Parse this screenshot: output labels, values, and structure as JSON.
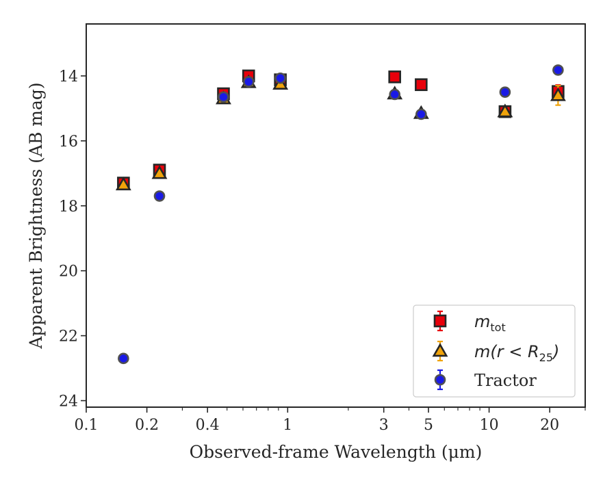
{
  "chart_data": {
    "type": "scatter",
    "xlabel": "Observed-frame Wavelength (μm)",
    "ylabel": "Apparent Brightness (AB mag)",
    "x_scale": "log",
    "xlim": [
      0.1,
      30
    ],
    "ylim": [
      24.2,
      12.4
    ],
    "y_inverted": true,
    "x_ticks": [
      {
        "value": 0.1,
        "label": "0.1"
      },
      {
        "value": 0.2,
        "label": "0.2"
      },
      {
        "value": 0.4,
        "label": "0.4"
      },
      {
        "value": 1,
        "label": "1"
      },
      {
        "value": 3,
        "label": "3"
      },
      {
        "value": 5,
        "label": "5"
      },
      {
        "value": 10,
        "label": "10"
      },
      {
        "value": 20,
        "label": "20"
      }
    ],
    "y_ticks": [
      {
        "value": 14,
        "label": "14"
      },
      {
        "value": 16,
        "label": "16"
      },
      {
        "value": 18,
        "label": "18"
      },
      {
        "value": 20,
        "label": "20"
      },
      {
        "value": 22,
        "label": "22"
      },
      {
        "value": 24,
        "label": "24"
      }
    ],
    "legend_position": "lower-right",
    "series": [
      {
        "name": "m_tot",
        "legend_main": "m",
        "legend_sub": "tot",
        "marker": "square",
        "color": "#e8000b",
        "edge_color": "#262626",
        "error_color": "#e8000b",
        "points": [
          {
            "x": 0.153,
            "y": 17.3,
            "err": 0.1
          },
          {
            "x": 0.231,
            "y": 16.9,
            "err": 0.1
          },
          {
            "x": 0.48,
            "y": 14.55,
            "err": 0.05
          },
          {
            "x": 0.64,
            "y": 14.0,
            "err": 0.05
          },
          {
            "x": 0.92,
            "y": 14.12,
            "err": 0.05
          },
          {
            "x": 3.4,
            "y": 14.03,
            "err": 0.05
          },
          {
            "x": 4.6,
            "y": 14.27,
            "err": 0.05
          },
          {
            "x": 12.0,
            "y": 15.1,
            "err": 0.05
          },
          {
            "x": 22.0,
            "y": 14.48,
            "err": 0.2
          }
        ]
      },
      {
        "name": "m(r<R25)",
        "legend_main": "m(r < R",
        "legend_sub": "25",
        "legend_close": ")",
        "marker": "triangle",
        "color": "#f0a30a",
        "edge_color": "#262626",
        "error_color": "#f0a30a",
        "points": [
          {
            "x": 0.153,
            "y": 17.35,
            "err": 0.1
          },
          {
            "x": 0.231,
            "y": 17.0,
            "err": 0.1
          },
          {
            "x": 0.48,
            "y": 14.7,
            "err": 0.05
          },
          {
            "x": 0.64,
            "y": 14.2,
            "err": 0.05
          },
          {
            "x": 0.92,
            "y": 14.25,
            "err": 0.05
          },
          {
            "x": 3.4,
            "y": 14.55,
            "err": 0.05
          },
          {
            "x": 4.6,
            "y": 15.15,
            "err": 0.05
          },
          {
            "x": 12.0,
            "y": 15.1,
            "err": 0.05
          },
          {
            "x": 22.0,
            "y": 14.6,
            "err": 0.3
          }
        ]
      },
      {
        "name": "Tractor",
        "legend_main": "Tractor",
        "marker": "circle",
        "color": "#1a1ae6",
        "edge_color": "#505050",
        "error_color": "#1a1ae6",
        "points": [
          {
            "x": 0.153,
            "y": 22.7,
            "err": 0.1
          },
          {
            "x": 0.231,
            "y": 17.7,
            "err": 0.1
          },
          {
            "x": 0.48,
            "y": 14.65,
            "err": 0.05
          },
          {
            "x": 0.64,
            "y": 14.18,
            "err": 0.05
          },
          {
            "x": 0.92,
            "y": 14.07,
            "err": 0.05
          },
          {
            "x": 3.4,
            "y": 14.57,
            "err": 0.05
          },
          {
            "x": 4.6,
            "y": 15.18,
            "err": 0.05
          },
          {
            "x": 12.0,
            "y": 14.5,
            "err": 0.05
          },
          {
            "x": 22.0,
            "y": 13.82,
            "err": 0.05
          }
        ]
      }
    ]
  }
}
